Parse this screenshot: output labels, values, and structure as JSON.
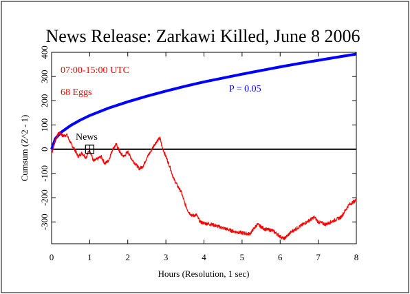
{
  "chart_data": {
    "type": "line",
    "title": "News Release: Zarkawi Killed, June 8 2006",
    "xlabel": "Hours (Resolution, 1 sec)",
    "ylabel": "Cumsum (Z^2 - 1)",
    "xlim": [
      0,
      8
    ],
    "ylim": [
      -390,
      400
    ],
    "x_ticks": [
      0,
      1,
      2,
      3,
      4,
      5,
      6,
      7,
      8
    ],
    "x_tick_labels": [
      "0",
      "1",
      "2",
      "3",
      "4",
      "5",
      "6",
      "7",
      "8"
    ],
    "y_ticks": [
      -300,
      -200,
      -100,
      0,
      100,
      200,
      300,
      400
    ],
    "y_tick_labels": [
      "-300",
      "-200",
      "-100",
      "0",
      "100",
      "200",
      "300",
      "400"
    ],
    "annotations": [
      {
        "text": "07:00-15:00 UTC",
        "color": "#ff0000"
      },
      {
        "text": "68 Eggs",
        "color": "#ff0000"
      },
      {
        "text": "P = 0.05",
        "color": "#0000ff"
      },
      {
        "text": "News",
        "color": "#000000",
        "marker": "square",
        "x": 1.0,
        "y": 0
      }
    ],
    "series": [
      {
        "role": "probability envelope",
        "color": "#0000ff",
        "x": [
          0,
          0.1,
          0.25,
          0.5,
          0.75,
          1,
          1.5,
          2,
          2.5,
          3,
          3.5,
          4,
          4.5,
          5,
          5.5,
          6,
          6.5,
          7,
          7.5,
          8
        ],
        "values": [
          0,
          44,
          70,
          98,
          120,
          139,
          170,
          196,
          219,
          240,
          260,
          278,
          294,
          310,
          325,
          340,
          354,
          367,
          380,
          393
        ]
      },
      {
        "role": "cumulative deviation",
        "color": "#ff0000",
        "x": [
          0,
          0.1,
          0.2,
          0.3,
          0.4,
          0.5,
          0.6,
          0.7,
          0.8,
          0.9,
          1.0,
          1.1,
          1.2,
          1.3,
          1.4,
          1.5,
          1.6,
          1.7,
          1.8,
          1.9,
          2.0,
          2.1,
          2.2,
          2.3,
          2.4,
          2.5,
          2.6,
          2.7,
          2.8,
          2.85,
          2.9,
          3.0,
          3.1,
          3.2,
          3.3,
          3.4,
          3.5,
          3.6,
          3.7,
          3.8,
          3.9,
          4.0,
          4.2,
          4.4,
          4.6,
          4.8,
          5.0,
          5.2,
          5.4,
          5.6,
          5.8,
          6.0,
          6.1,
          6.2,
          6.3,
          6.5,
          6.7,
          6.9,
          7.0,
          7.2,
          7.4,
          7.6,
          7.8,
          8.0
        ],
        "values": [
          -20,
          40,
          70,
          55,
          60,
          25,
          0,
          -30,
          -15,
          -35,
          0,
          -50,
          -40,
          -30,
          -60,
          -45,
          0,
          20,
          -15,
          -30,
          -10,
          -40,
          -60,
          -80,
          -70,
          -35,
          -10,
          20,
          40,
          45,
          10,
          -30,
          -70,
          -120,
          -150,
          -175,
          -225,
          -260,
          -275,
          -270,
          -300,
          -305,
          -310,
          -320,
          -330,
          -340,
          -345,
          -350,
          -310,
          -330,
          -335,
          -360,
          -370,
          -355,
          -340,
          -320,
          -300,
          -280,
          -300,
          -310,
          -295,
          -280,
          -230,
          -210
        ]
      }
    ],
    "reference_line": {
      "y": 0,
      "color": "#000000"
    },
    "grid": false
  }
}
